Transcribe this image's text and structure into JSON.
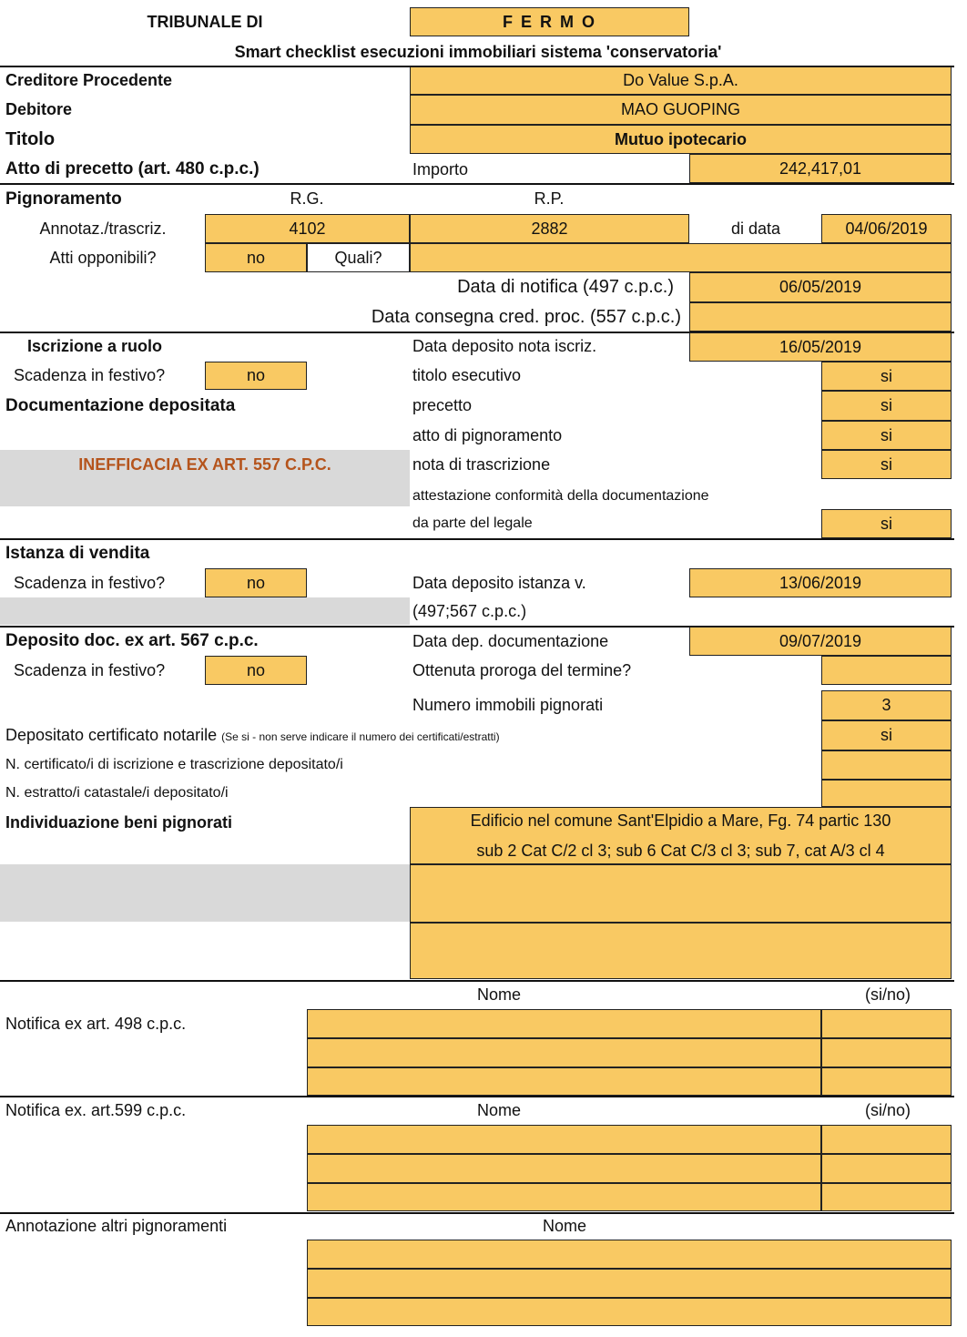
{
  "header": {
    "tribunale_label": "TRIBUNALE DI",
    "tribunale": "F E R M O",
    "subtitle": "Smart checklist esecuzioni immobiliari  sistema 'conservatoria'"
  },
  "creditore": {
    "label": "Creditore Procedente",
    "value": "Do Value S.p.A."
  },
  "debitore": {
    "label": "Debitore",
    "value": "MAO GUOPING"
  },
  "titolo": {
    "label": "Titolo",
    "value": "Mutuo ipotecario"
  },
  "precetto": {
    "label": "Atto di precetto (art. 480 c.p.c.)",
    "importo_label": "Importo",
    "importo": "242,417,01"
  },
  "pignoramento": {
    "label": "Pignoramento",
    "rg_label": "R.G.",
    "rp_label": "R.P.",
    "annot_label": "Annotaz./trascriz.",
    "rg": "4102",
    "rp": "2882",
    "di_data_label": "di data",
    "di_data": "04/06/2019",
    "atti_label": "Atti opponibili?",
    "atti": "no",
    "quali_label": "Quali?",
    "quali": "",
    "notifica_label": "Data di notifica (497 c.p.c.)",
    "notifica": "06/05/2019",
    "consegna_label": "Data consegna cred. proc. (557 c.p.c.)",
    "consegna": ""
  },
  "iscrizione": {
    "label": "Iscrizione a ruolo",
    "deposito_label": "Data deposito nota iscriz.",
    "deposito": "16/05/2019",
    "festivo_label": "Scadenza in festivo?",
    "festivo": "no",
    "doc_label": "Documentazione depositata",
    "inefficacia": "INEFFICACIA EX ART. 557 C.P.C.",
    "docs": [
      {
        "label": "titolo esecutivo",
        "value": "si"
      },
      {
        "label": "precetto",
        "value": "si"
      },
      {
        "label": "atto di pignoramento",
        "value": "si"
      },
      {
        "label": "nota di trascrizione",
        "value": "si"
      }
    ],
    "attestazione_line1": "attestazione conformità della documentazione",
    "attestazione_line2": "da parte del legale",
    "attestazione": "si"
  },
  "istanza": {
    "label": "Istanza di vendita",
    "festivo_label": "Scadenza in festivo?",
    "festivo": "no",
    "deposito_label": "Data deposito istanza v.",
    "deposito_note": "(497;567 c.p.c.)",
    "deposito": "13/06/2019"
  },
  "deposito_doc": {
    "label": "Deposito doc. ex art. 567 c.p.c.",
    "data_label": "Data dep. documentazione",
    "data": "09/07/2019",
    "festivo_label": "Scadenza in festivo?",
    "festivo": "no",
    "proroga_label": "Ottenuta proroga del termine?",
    "proroga": "",
    "immobili_label": "Numero immobili pignorati",
    "immobili": "3",
    "notarile_label": "Depositato certificato notarile",
    "notarile_note": "(Se si - non serve indicare il numero dei certificati/estratti)",
    "notarile": "si",
    "ncert_label": "N.  certificato/i di iscrizione e trascrizione depositato/i",
    "ncert": "",
    "nestratti_label": "N. estratto/i catastale/i depositato/i",
    "nestratti": ""
  },
  "beni": {
    "label": "Individuazione beni pignorati",
    "line1": "Edificio nel comune Sant'Elpidio a Mare, Fg. 74 partic 130",
    "line2": "sub 2 Cat C/2 cl 3; sub 6 Cat C/3 cl 3; sub 7, cat A/3 cl 4"
  },
  "notifica498": {
    "label": "Notifica ex art. 498 c.p.c.",
    "nome_label": "Nome",
    "sino_label": "(si/no)"
  },
  "notifica599": {
    "label": "Notifica ex. art.599 c.p.c.",
    "nome_label": "Nome",
    "sino_label": "(si/no)"
  },
  "altri": {
    "label": "Annotazione altri pignoramenti",
    "nome_label": "Nome"
  },
  "colors": {
    "field": "#f9c963",
    "gray": "#d9d9d9",
    "warning_text": "#b5541c"
  }
}
